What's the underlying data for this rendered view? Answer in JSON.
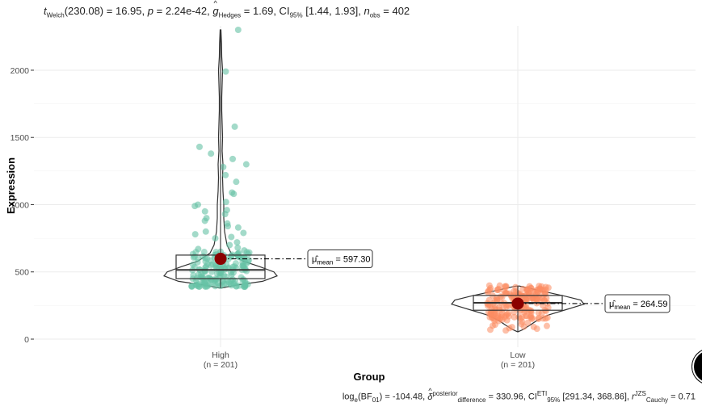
{
  "title": {
    "test": "Welch",
    "df": "(230.08)",
    "stat": "16.95",
    "p": "2.24e-42",
    "effect_label": "Hedges",
    "effect": "1.69",
    "ci_label": "95%",
    "ci": "[1.44, 1.93]",
    "nobs_label": "obs",
    "nobs": "402"
  },
  "subtitle": {
    "bf": "-104.48",
    "delta_sup": "posterior",
    "delta_sub": "difference",
    "delta": "330.96",
    "ci_sup": "ETI",
    "ci_sub": "95%",
    "ci": "[291.34, 368.86]",
    "r_sup": "JZS",
    "r_sub": "Cauchy",
    "r": "0.71"
  },
  "chart_data": {
    "type": "violin-box-scatter",
    "xlabel": "Group",
    "ylabel": "Expression",
    "ylim": [
      -60,
      2330
    ],
    "yticks": [
      0,
      500,
      1000,
      1500,
      2000
    ],
    "grid": true,
    "categories": [
      "High",
      "Low"
    ],
    "category_n": [
      "(n = 201)",
      "(n = 201)"
    ],
    "colors": {
      "High": "#66c2a5",
      "Low": "#fc8d62",
      "mean": "#8b0000"
    },
    "groups": [
      {
        "name": "High",
        "mean": 597.3,
        "mean_label": "597.30",
        "box": {
          "q1": 450,
          "median": 515,
          "q3": 625,
          "min": 380,
          "max": 2300
        },
        "outliers": [
          2300,
          1990,
          1580,
          1430,
          1380,
          1340,
          1300,
          1280,
          1220,
          1170,
          1090,
          1080,
          1020,
          1000,
          990,
          960,
          950,
          930,
          900,
          880,
          860,
          840,
          830,
          800,
          790,
          780,
          760,
          750,
          720,
          700,
          680,
          670,
          660,
          650,
          640,
          630
        ]
      },
      {
        "name": "Low",
        "mean": 264.59,
        "mean_label": "264.59",
        "box": {
          "q1": 215,
          "median": 270,
          "q3": 325,
          "min": 55,
          "max": 395
        },
        "outliers": []
      }
    ]
  }
}
